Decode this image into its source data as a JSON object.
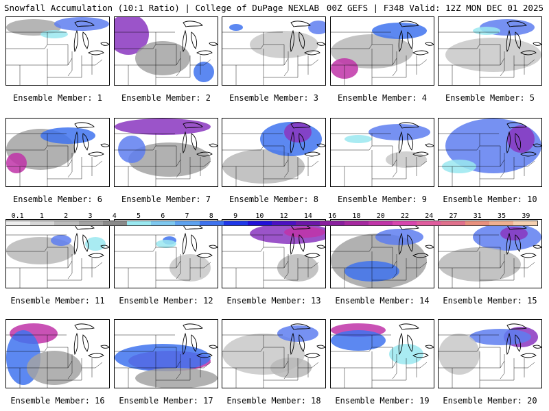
{
  "header": {
    "left_title": "Snowfall Accumulation (10:1 Ratio) | College of DuPage NEXLAB",
    "right_title": "00Z GEFS | F348 Valid: 12Z MON DEC 01 2025"
  },
  "panels": [
    {
      "label": "Ensemble Member: 1"
    },
    {
      "label": "Ensemble Member: 2"
    },
    {
      "label": "Ensemble Member: 3"
    },
    {
      "label": "Ensemble Member: 4"
    },
    {
      "label": "Ensemble Member: 5"
    },
    {
      "label": "Ensemble Member: 6"
    },
    {
      "label": "Ensemble Member: 7"
    },
    {
      "label": "Ensemble Member: 8"
    },
    {
      "label": "Ensemble Member: 9"
    },
    {
      "label": "Ensemble Member: 10"
    },
    {
      "label": "Ensemble Member: 11"
    },
    {
      "label": "Ensemble Member: 12"
    },
    {
      "label": "Ensemble Member: 13"
    },
    {
      "label": "Ensemble Member: 14"
    },
    {
      "label": "Ensemble Member: 15"
    },
    {
      "label": "Ensemble Member: 16"
    },
    {
      "label": "Ensemble Member: 17"
    },
    {
      "label": "Ensemble Member: 18"
    },
    {
      "label": "Ensemble Member: 19"
    },
    {
      "label": "Ensemble Member: 20"
    }
  ],
  "colorbar": {
    "ticks": [
      "0.1",
      "1",
      "2",
      "3",
      "4",
      "5",
      "6",
      "7",
      "8",
      "9",
      "10",
      "12",
      "14",
      "16",
      "18",
      "20",
      "22",
      "24",
      "27",
      "31",
      "35",
      "39"
    ],
    "colors": [
      "#eeeeee",
      "#d6d6d6",
      "#bcbcbc",
      "#a3a3a3",
      "#8a8a8a",
      "#9ae8f0",
      "#7ec8ef",
      "#5ea2ef",
      "#3f73ef",
      "#1f38e8",
      "#2010d8",
      "#4a10c0",
      "#6a16a8",
      "#8a1e9e",
      "#a628a0",
      "#c034a8",
      "#d846ae",
      "#e05c9e",
      "#e0708c",
      "#e8907e",
      "#f0b090",
      "#f6d0b0"
    ]
  }
}
